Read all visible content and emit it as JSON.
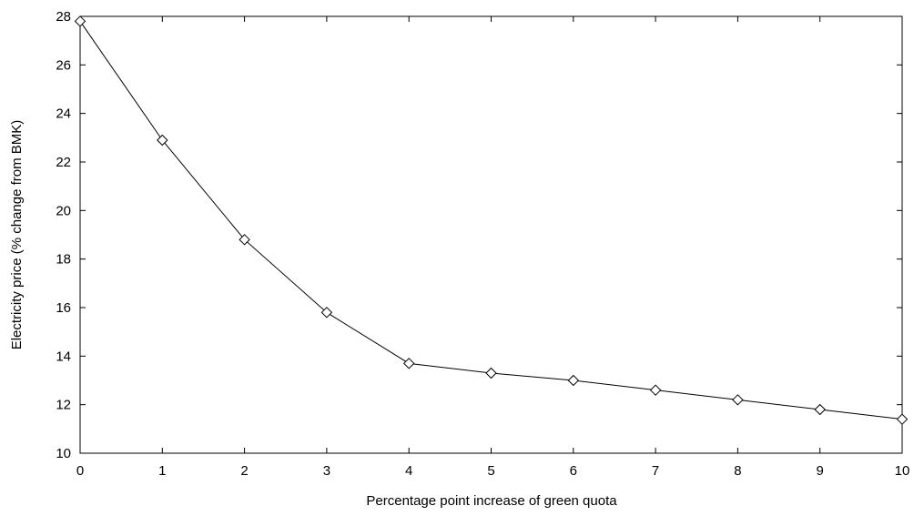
{
  "chart_data": {
    "type": "line",
    "title": "",
    "xlabel": "Percentage point increase of green quota",
    "ylabel": "Electricity price (% change from BMK)",
    "xlim": [
      0,
      10
    ],
    "ylim": [
      10,
      28
    ],
    "x_ticks": [
      0,
      1,
      2,
      3,
      4,
      5,
      6,
      7,
      8,
      9,
      10
    ],
    "y_ticks": [
      10,
      12,
      14,
      16,
      18,
      20,
      22,
      24,
      26,
      28
    ],
    "grid": false,
    "marker": "diamond",
    "line_color": "#000000",
    "series": [
      {
        "x": [
          0,
          1,
          2,
          3,
          4,
          5,
          6,
          7,
          8,
          9,
          10
        ],
        "values": [
          27.8,
          22.9,
          18.8,
          15.8,
          13.7,
          13.3,
          13.0,
          12.6,
          12.2,
          11.8,
          11.4
        ]
      }
    ]
  }
}
